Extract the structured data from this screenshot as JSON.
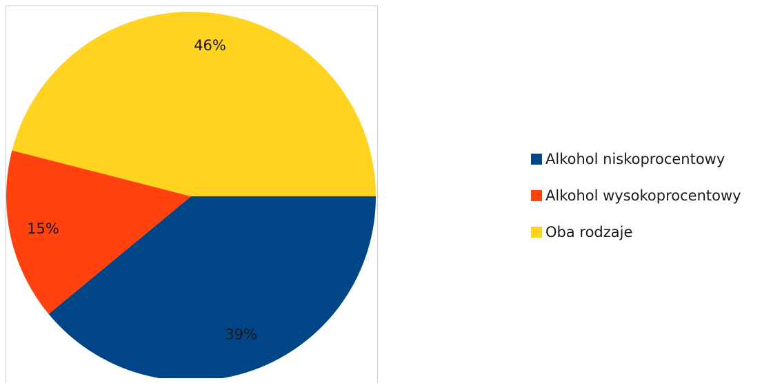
{
  "chart_data": {
    "type": "pie",
    "categories": [
      "Alkohol niskoprocentowy",
      "Alkohol wysokoprocentowy",
      "Oba rodzaje"
    ],
    "values": [
      39,
      15,
      46
    ],
    "data_labels": [
      "39%",
      "15%",
      "46%"
    ],
    "colors": [
      "#004586",
      "#ff420e",
      "#ffd320"
    ],
    "start_angle_deg": 0,
    "direction": "clockwise",
    "legend_position": "right",
    "title": ""
  },
  "legend": {
    "items": [
      {
        "label": "Alkohol niskoprocentowy",
        "color": "#004586"
      },
      {
        "label": "Alkohol wysokoprocentowy",
        "color": "#ff420e"
      },
      {
        "label": "Oba rodzaje",
        "color": "#ffd320"
      }
    ]
  }
}
